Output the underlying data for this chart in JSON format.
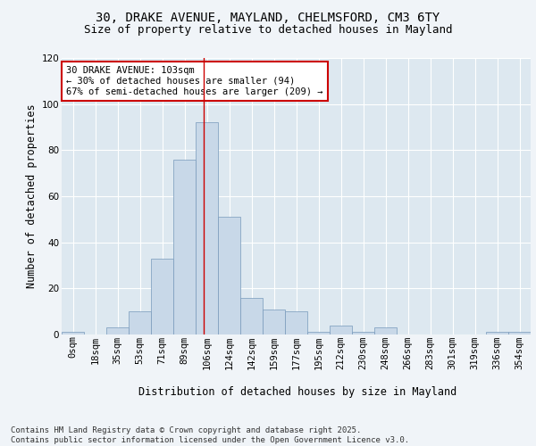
{
  "title_line1": "30, DRAKE AVENUE, MAYLAND, CHELMSFORD, CM3 6TY",
  "title_line2": "Size of property relative to detached houses in Mayland",
  "xlabel": "Distribution of detached houses by size in Mayland",
  "ylabel": "Number of detached properties",
  "bar_labels": [
    "0sqm",
    "18sqm",
    "35sqm",
    "53sqm",
    "71sqm",
    "89sqm",
    "106sqm",
    "124sqm",
    "142sqm",
    "159sqm",
    "177sqm",
    "195sqm",
    "212sqm",
    "230sqm",
    "248sqm",
    "266sqm",
    "283sqm",
    "301sqm",
    "319sqm",
    "336sqm",
    "354sqm"
  ],
  "bar_values": [
    1,
    0,
    3,
    10,
    33,
    76,
    92,
    51,
    16,
    11,
    10,
    1,
    4,
    1,
    3,
    0,
    0,
    0,
    0,
    1,
    1
  ],
  "bar_color": "#c8d8e8",
  "bar_edge_color": "#7799bb",
  "grid_color": "#c8d8e8",
  "background_color": "#dde8f0",
  "vline_x": 5.85,
  "vline_color": "#cc0000",
  "annotation_text": "30 DRAKE AVENUE: 103sqm\n← 30% of detached houses are smaller (94)\n67% of semi-detached houses are larger (209) →",
  "annotation_box_color": "#ffffff",
  "annotation_box_edge": "#cc0000",
  "ylim": [
    0,
    120
  ],
  "yticks": [
    0,
    20,
    40,
    60,
    80,
    100,
    120
  ],
  "footnote": "Contains HM Land Registry data © Crown copyright and database right 2025.\nContains public sector information licensed under the Open Government Licence v3.0.",
  "title_fontsize": 10,
  "subtitle_fontsize": 9,
  "axis_label_fontsize": 8.5,
  "tick_fontsize": 7.5,
  "annotation_fontsize": 7.5,
  "footnote_fontsize": 6.5
}
